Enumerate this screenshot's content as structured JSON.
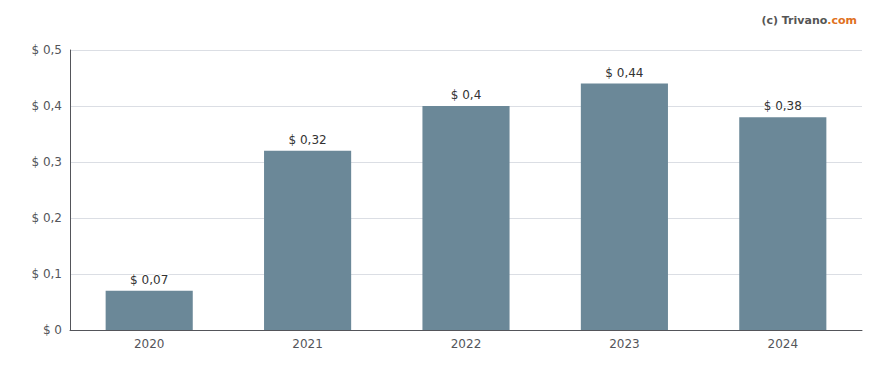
{
  "chart_data": {
    "type": "bar",
    "categories": [
      "2020",
      "2021",
      "2022",
      "2023",
      "2024"
    ],
    "values": [
      0.07,
      0.32,
      0.4,
      0.44,
      0.38
    ],
    "value_labels": [
      "$ 0,07",
      "$ 0,32",
      "$ 0,4",
      "$ 0,44",
      "$ 0,38"
    ],
    "data_labels": true,
    "color": "#6b8898",
    "ylim": [
      0,
      0.5
    ],
    "yticks": [
      {
        "value": 0,
        "label": "$ 0"
      },
      {
        "value": 0.1,
        "label": "$ 0,1"
      },
      {
        "value": 0.2,
        "label": "$ 0,2"
      },
      {
        "value": 0.3,
        "label": "$ 0,3"
      },
      {
        "value": 0.4,
        "label": "$ 0,4"
      },
      {
        "value": 0.5,
        "label": "$ 0,5"
      }
    ],
    "grid": true,
    "annotations": [
      {
        "text": "(c) Trivano",
        "color": "#555555"
      },
      {
        "text": ".com",
        "color": "#e07020"
      }
    ]
  }
}
